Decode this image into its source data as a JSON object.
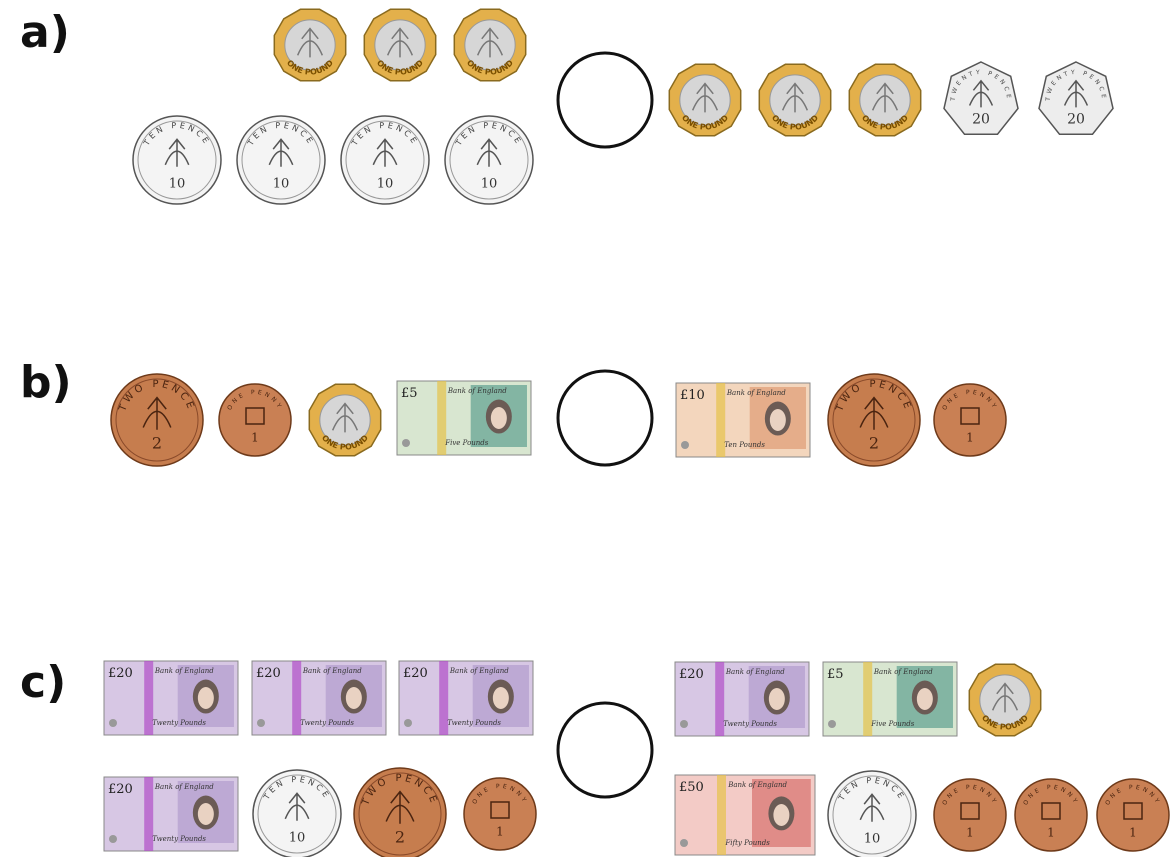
{
  "questions": [
    {
      "label": "a)",
      "left": [
        [
          {
            "kind": "pound",
            "legend": "ONE POUND"
          },
          {
            "kind": "pound",
            "legend": "ONE POUND"
          },
          {
            "kind": "pound",
            "legend": "ONE POUND"
          }
        ],
        [
          {
            "kind": "ten",
            "legend": "TEN PENCE",
            "numeral": "10"
          },
          {
            "kind": "ten",
            "legend": "TEN PENCE",
            "numeral": "10"
          },
          {
            "kind": "ten",
            "legend": "TEN PENCE",
            "numeral": "10"
          },
          {
            "kind": "ten",
            "legend": "TEN PENCE",
            "numeral": "10"
          }
        ]
      ],
      "right": [
        [
          {
            "kind": "pound",
            "legend": "ONE POUND"
          },
          {
            "kind": "pound",
            "legend": "ONE POUND"
          },
          {
            "kind": "pound",
            "legend": "ONE POUND"
          },
          {
            "kind": "twenty",
            "legend": "TWENTY PENCE",
            "numeral": "20"
          },
          {
            "kind": "twenty",
            "legend": "TWENTY PENCE",
            "numeral": "20"
          }
        ]
      ]
    },
    {
      "label": "b)",
      "left": [
        [
          {
            "kind": "two",
            "legend": "TWO PENCE",
            "numeral": "2"
          },
          {
            "kind": "one",
            "legend": "ONE PENNY",
            "numeral": "1"
          },
          {
            "kind": "pound",
            "legend": "ONE POUND"
          },
          {
            "kind": "note5",
            "corner": "£5",
            "bank": "Bank of England",
            "words": "Five Pounds"
          }
        ]
      ],
      "right": [
        [
          {
            "kind": "note10",
            "corner": "£10",
            "bank": "Bank of England",
            "words": "Ten Pounds"
          },
          {
            "kind": "two",
            "legend": "TWO PENCE",
            "numeral": "2"
          },
          {
            "kind": "one",
            "legend": "ONE PENNY",
            "numeral": "1"
          }
        ]
      ]
    },
    {
      "label": "c)",
      "left": [
        [
          {
            "kind": "note20",
            "corner": "£20",
            "bank": "Bank of England",
            "words": "Twenty Pounds"
          },
          {
            "kind": "note20",
            "corner": "£20",
            "bank": "Bank of England",
            "words": "Twenty Pounds"
          },
          {
            "kind": "note20",
            "corner": "£20",
            "bank": "Bank of England",
            "words": "Twenty Pounds"
          }
        ],
        [
          {
            "kind": "note20",
            "corner": "£20",
            "bank": "Bank of England",
            "words": "Twenty Pounds"
          },
          {
            "kind": "ten",
            "legend": "TEN PENCE",
            "numeral": "10"
          },
          {
            "kind": "two",
            "legend": "TWO PENCE",
            "numeral": "2"
          },
          {
            "kind": "one",
            "legend": "ONE PENNY",
            "numeral": "1"
          }
        ]
      ],
      "right": [
        [
          {
            "kind": "note20",
            "corner": "£20",
            "bank": "Bank of England",
            "words": "Twenty Pounds"
          },
          {
            "kind": "note5",
            "corner": "£5",
            "bank": "Bank of England",
            "words": "Five Pounds"
          },
          {
            "kind": "pound",
            "legend": "ONE POUND"
          }
        ],
        [
          {
            "kind": "note50",
            "corner": "£50",
            "bank": "Bank of England",
            "words": "Fifty Pounds"
          },
          {
            "kind": "ten",
            "legend": "TEN PENCE",
            "numeral": "10"
          },
          {
            "kind": "one",
            "legend": "ONE PENNY",
            "numeral": "1"
          },
          {
            "kind": "one",
            "legend": "ONE PENNY",
            "numeral": "1"
          },
          {
            "kind": "one",
            "legend": "ONE PENNY",
            "numeral": "1"
          }
        ]
      ]
    }
  ]
}
